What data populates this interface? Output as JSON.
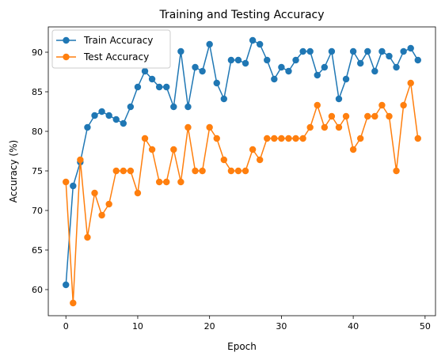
{
  "chart_data": {
    "type": "line",
    "title": "Training and Testing Accuracy",
    "xlabel": "Epoch",
    "ylabel": "Accuracy (%)",
    "xlim": [
      -2.45,
      51.45
    ],
    "ylim": [
      56.7,
      93.2
    ],
    "xticks": [
      0,
      10,
      20,
      30,
      40,
      50
    ],
    "yticks": [
      60,
      65,
      70,
      75,
      80,
      85,
      90
    ],
    "grid": false,
    "legend_position": "top-left",
    "x": [
      0,
      1,
      2,
      3,
      4,
      5,
      6,
      7,
      8,
      9,
      10,
      11,
      12,
      13,
      14,
      15,
      16,
      17,
      18,
      19,
      20,
      21,
      22,
      23,
      24,
      25,
      26,
      27,
      28,
      29,
      30,
      31,
      32,
      33,
      34,
      35,
      36,
      37,
      38,
      39,
      40,
      41,
      42,
      43,
      44,
      45,
      46,
      47,
      48,
      49
    ],
    "series": [
      {
        "name": "Train Accuracy",
        "color": "#1f77b4",
        "values": [
          60.6,
          73.1,
          76.1,
          80.5,
          82.0,
          82.5,
          82.0,
          81.5,
          81.0,
          83.1,
          85.6,
          87.6,
          86.6,
          85.6,
          85.6,
          83.1,
          90.1,
          83.1,
          88.1,
          87.6,
          91.0,
          86.1,
          84.1,
          89.0,
          89.0,
          88.6,
          91.5,
          91.0,
          89.0,
          86.6,
          88.1,
          87.6,
          89.0,
          90.1,
          90.1,
          87.1,
          88.1,
          90.1,
          84.1,
          86.6,
          90.1,
          88.6,
          90.1,
          87.6,
          90.1,
          89.5,
          88.1,
          90.1,
          90.5,
          89.0
        ]
      },
      {
        "name": "Test Accuracy",
        "color": "#ff7f0e",
        "values": [
          73.6,
          58.3,
          76.4,
          66.6,
          72.2,
          69.4,
          70.8,
          75.0,
          75.0,
          75.0,
          72.2,
          79.1,
          77.7,
          73.6,
          73.6,
          77.7,
          73.6,
          80.5,
          75.0,
          75.0,
          80.5,
          79.1,
          76.4,
          75.0,
          75.0,
          75.0,
          77.7,
          76.4,
          79.1,
          79.1,
          79.1,
          79.1,
          79.1,
          79.1,
          80.5,
          83.3,
          80.5,
          81.9,
          80.5,
          81.9,
          77.7,
          79.1,
          81.9,
          81.9,
          83.3,
          81.9,
          75.0,
          83.3,
          86.1,
          79.1
        ]
      }
    ]
  }
}
